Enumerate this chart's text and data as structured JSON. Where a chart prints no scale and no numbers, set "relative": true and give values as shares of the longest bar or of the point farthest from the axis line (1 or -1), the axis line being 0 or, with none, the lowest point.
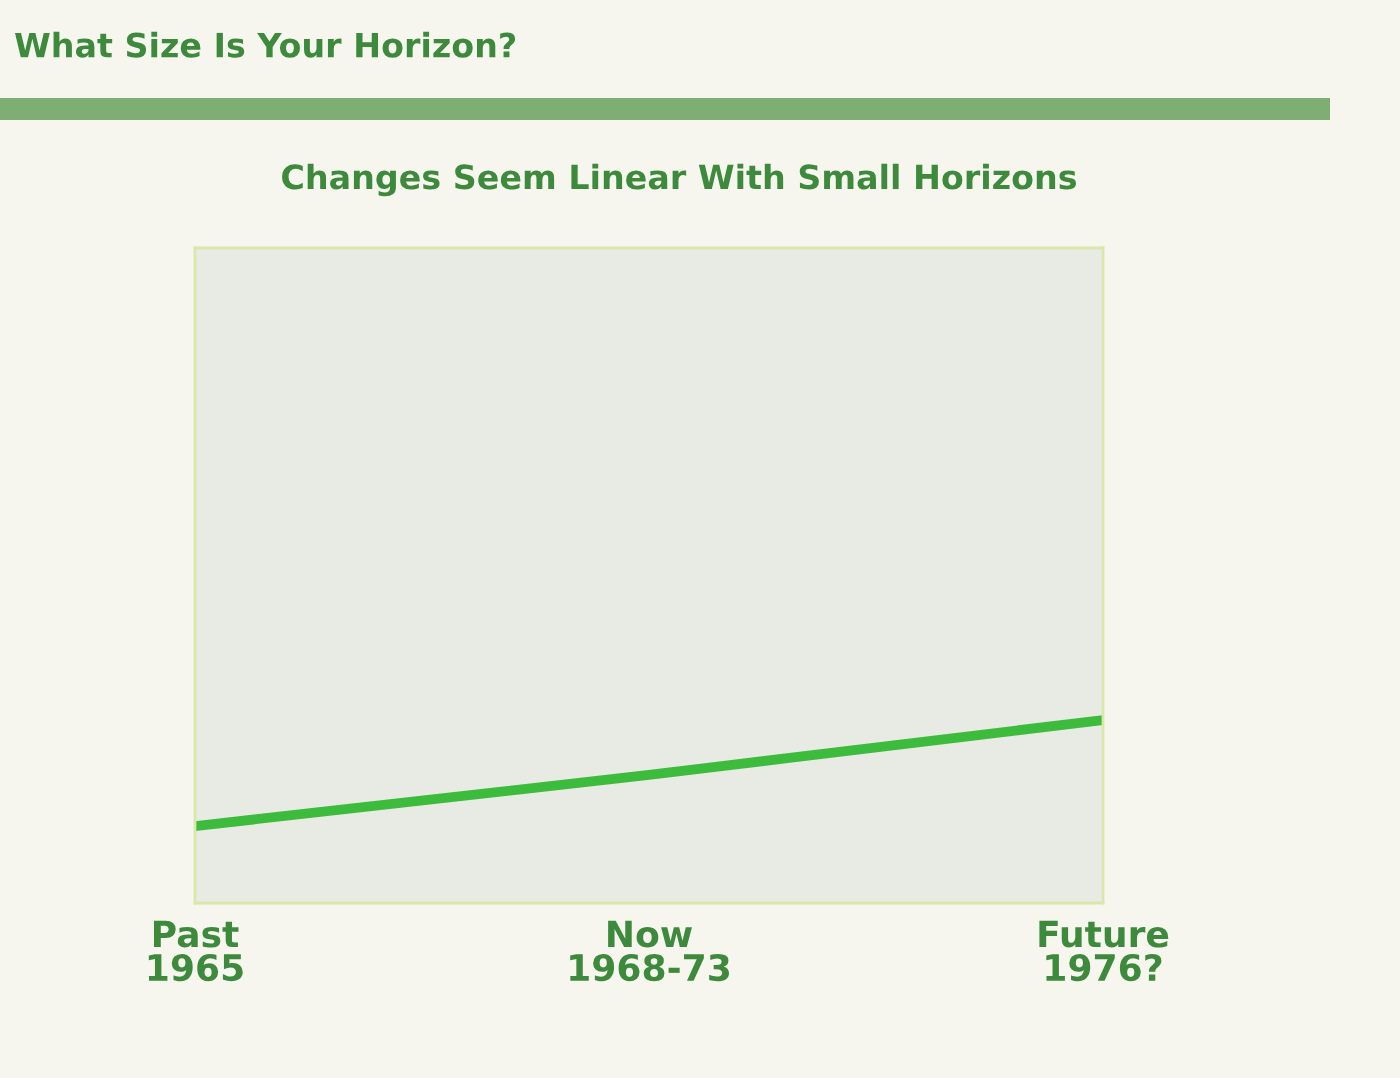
{
  "chart_data": {
    "type": "line",
    "title": "What Size Is Your Horizon?",
    "subtitle": "Changes Seem Linear With Small Horizons",
    "categories": [
      "Past\n1965",
      "Now\n1968-73",
      "Future\n1976?"
    ],
    "series": [
      {
        "color": "#3dbb3d",
        "values": [
          0.42,
          0.7,
          1
        ]
      }
    ],
    "relative": true,
    "grid": false,
    "marker": "none",
    "line_style": "solid"
  }
}
